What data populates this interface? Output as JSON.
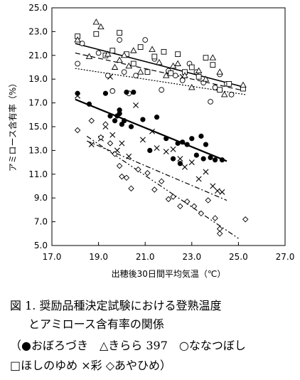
{
  "chart_data": {
    "type": "scatter",
    "xlabel": "出穂後30日間平均気温（℃）",
    "ylabel": "アミロース含有率（%）",
    "xlim": [
      17.0,
      27.0
    ],
    "ylim": [
      5.0,
      25.0
    ],
    "xticks": [
      "17.0",
      "19.0",
      "21.0",
      "23.0",
      "25.0",
      "27.0"
    ],
    "yticks": [
      "5.0",
      "7.0",
      "9.0",
      "11.0",
      "13.0",
      "15.0",
      "17.0",
      "19.0",
      "21.0",
      "23.0",
      "25.0"
    ],
    "series": [
      {
        "name": "おぼろづき",
        "marker": "filled-circle",
        "points": [
          [
            18.1,
            17.8
          ],
          [
            18.6,
            16.9
          ],
          [
            19.3,
            17.8
          ],
          [
            19.5,
            15.9
          ],
          [
            19.7,
            15.5
          ],
          [
            19.8,
            15.9
          ],
          [
            19.9,
            16.4
          ],
          [
            19.9,
            16.1
          ],
          [
            20.0,
            15.2
          ],
          [
            20.1,
            15.5
          ],
          [
            20.2,
            17.9
          ],
          [
            20.4,
            15.0
          ],
          [
            20.5,
            17.9
          ],
          [
            20.9,
            15.6
          ],
          [
            21.2,
            13.0
          ],
          [
            21.5,
            15.8
          ],
          [
            21.9,
            14.0
          ],
          [
            22.2,
            12.3
          ],
          [
            22.4,
            13.6
          ],
          [
            22.5,
            11.9
          ],
          [
            22.6,
            13.7
          ],
          [
            22.8,
            13.5
          ],
          [
            23.0,
            14.0
          ],
          [
            23.2,
            12.6
          ],
          [
            23.4,
            14.2
          ],
          [
            23.5,
            12.3
          ],
          [
            23.6,
            13.5
          ],
          [
            23.8,
            12.4
          ],
          [
            24.0,
            12.2
          ],
          [
            24.3,
            12.2
          ]
        ],
        "trend": {
          "style": "solid",
          "x": [
            18.0,
            24.5
          ],
          "y": [
            17.3,
            12.1
          ]
        }
      },
      {
        "name": "きらら 397",
        "marker": "open-triangle",
        "points": [
          [
            18.1,
            22.3
          ],
          [
            18.6,
            20.9
          ],
          [
            18.9,
            23.8
          ],
          [
            19.1,
            23.4
          ],
          [
            19.4,
            21.1
          ],
          [
            19.7,
            20.0
          ],
          [
            19.9,
            20.6
          ],
          [
            20.1,
            21.0
          ],
          [
            20.3,
            20.1
          ],
          [
            20.5,
            21.4
          ],
          [
            20.8,
            19.6
          ],
          [
            21.3,
            21.5
          ],
          [
            21.6,
            20.4
          ],
          [
            21.9,
            19.3
          ],
          [
            22.2,
            20.1
          ],
          [
            22.4,
            20.3
          ],
          [
            22.7,
            19.3
          ],
          [
            23.0,
            18.3
          ],
          [
            23.3,
            19.7
          ],
          [
            23.6,
            19.0
          ],
          [
            23.9,
            20.8
          ],
          [
            24.2,
            19.6
          ],
          [
            24.4,
            17.7
          ],
          [
            25.2,
            18.5
          ]
        ],
        "trend": {
          "style": "dashed",
          "x": [
            18.0,
            25.3
          ],
          "y": [
            21.2,
            18.0
          ]
        }
      },
      {
        "name": "ななつぼし",
        "marker": "open-circle",
        "points": [
          [
            18.1,
            20.3
          ],
          [
            18.3,
            22.0
          ],
          [
            19.0,
            21.2
          ],
          [
            19.4,
            19.3
          ],
          [
            19.6,
            18.0
          ],
          [
            19.9,
            22.3
          ],
          [
            20.1,
            19.6
          ],
          [
            20.3,
            17.8
          ],
          [
            20.6,
            19.3
          ],
          [
            21.0,
            22.3
          ],
          [
            21.4,
            20.7
          ],
          [
            21.7,
            18.1
          ],
          [
            22.0,
            19.7
          ],
          [
            22.3,
            19.3
          ],
          [
            22.6,
            18.9
          ],
          [
            22.9,
            20.3
          ],
          [
            23.2,
            19.6
          ],
          [
            23.5,
            18.7
          ],
          [
            23.8,
            17.1
          ],
          [
            24.0,
            18.3
          ],
          [
            24.2,
            19.4
          ],
          [
            24.5,
            18.6
          ],
          [
            24.7,
            17.7
          ],
          [
            25.2,
            18.3
          ]
        ],
        "trend": {
          "style": "dotted",
          "x": [
            18.0,
            25.3
          ],
          "y": [
            19.9,
            17.7
          ]
        }
      },
      {
        "name": "ほしのゆめ",
        "marker": "open-square",
        "points": [
          [
            18.1,
            22.6
          ],
          [
            18.9,
            22.8
          ],
          [
            19.3,
            21.0
          ],
          [
            19.6,
            21.4
          ],
          [
            19.9,
            22.9
          ],
          [
            20.2,
            21.1
          ],
          [
            20.5,
            20.3
          ],
          [
            20.8,
            21.7
          ],
          [
            21.1,
            19.6
          ],
          [
            21.4,
            20.9
          ],
          [
            21.8,
            21.3
          ],
          [
            22.1,
            19.5
          ],
          [
            22.4,
            21.1
          ],
          [
            22.7,
            19.6
          ],
          [
            23.0,
            20.0
          ],
          [
            23.3,
            19.2
          ],
          [
            23.6,
            20.8
          ],
          [
            23.9,
            20.2
          ],
          [
            24.2,
            18.1
          ],
          [
            24.6,
            18.6
          ],
          [
            25.2,
            18.2
          ]
        ],
        "trend": {
          "style": "solid",
          "x": [
            18.0,
            25.3
          ],
          "y": [
            22.0,
            18.3
          ]
        }
      },
      {
        "name": "彩",
        "marker": "x",
        "points": [
          [
            18.1,
            17.6
          ],
          [
            18.7,
            13.5
          ],
          [
            19.1,
            14.0
          ],
          [
            19.3,
            15.0
          ],
          [
            19.6,
            14.3
          ],
          [
            19.8,
            13.0
          ],
          [
            20.0,
            13.6
          ],
          [
            20.3,
            12.5
          ],
          [
            20.6,
            16.8
          ],
          [
            20.9,
            13.9
          ],
          [
            21.3,
            14.6
          ],
          [
            21.5,
            13.2
          ],
          [
            21.9,
            12.9
          ],
          [
            22.2,
            13.1
          ],
          [
            22.5,
            12.3
          ],
          [
            22.7,
            11.6
          ],
          [
            23.0,
            12.0
          ],
          [
            23.3,
            10.6
          ],
          [
            23.6,
            11.2
          ],
          [
            23.9,
            10.0
          ],
          [
            24.1,
            9.6
          ],
          [
            24.3,
            9.5
          ],
          [
            19.5,
            19.2
          ],
          [
            22.6,
            19.2
          ]
        ],
        "trend": {
          "style": "dash-dot",
          "x": [
            18.5,
            24.5
          ],
          "y": [
            13.8,
            8.8
          ]
        }
      },
      {
        "name": "あやひめ",
        "marker": "open-diamond",
        "points": [
          [
            18.1,
            14.7
          ],
          [
            18.7,
            15.5
          ],
          [
            19.1,
            14.1
          ],
          [
            19.3,
            15.2
          ],
          [
            19.5,
            13.6
          ],
          [
            19.7,
            12.7
          ],
          [
            19.9,
            11.7
          ],
          [
            20.0,
            10.8
          ],
          [
            20.2,
            10.7
          ],
          [
            20.4,
            9.8
          ],
          [
            20.7,
            11.4
          ],
          [
            21.1,
            11.1
          ],
          [
            21.4,
            9.7
          ],
          [
            21.7,
            10.4
          ],
          [
            22.0,
            8.9
          ],
          [
            22.2,
            9.1
          ],
          [
            22.5,
            8.3
          ],
          [
            22.8,
            8.7
          ],
          [
            23.1,
            8.3
          ],
          [
            23.4,
            7.7
          ],
          [
            23.7,
            8.8
          ],
          [
            24.0,
            7.3
          ],
          [
            24.2,
            6.4
          ],
          [
            24.2,
            6.0
          ],
          [
            25.3,
            7.2
          ]
        ],
        "trend": {
          "style": "dash-dot-dot",
          "x": [
            18.5,
            25.0
          ],
          "y": [
            14.2,
            5.6
          ]
        }
      }
    ]
  },
  "caption": {
    "line1": "図 1.  奨励品種決定試験における登熟温度",
    "line2": "とアミロース含有率の関係",
    "line3": "（●おぼろづき　△きらら 397　○ななつぼし",
    "line4": "□ほしのゆめ ×彩 ◇あやひめ）"
  }
}
